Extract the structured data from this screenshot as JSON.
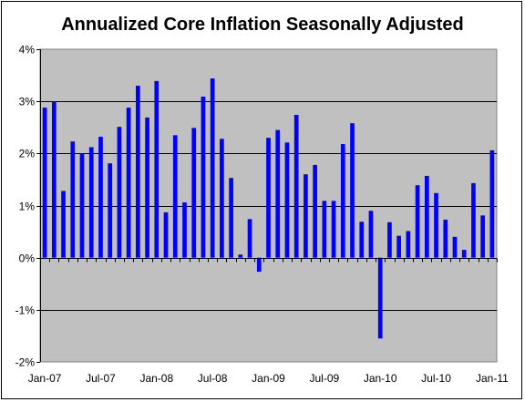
{
  "chart_data": {
    "type": "bar",
    "title": "Annualized Core Inflation Seasonally Adjusted",
    "xlabel": "",
    "ylabel": "",
    "ylim": [
      -2,
      4
    ],
    "y_tick_values": [
      -2,
      -1,
      0,
      1,
      2,
      3,
      4
    ],
    "y_tick_labels": [
      "-2%",
      "-1%",
      "0%",
      "1%",
      "2%",
      "3%",
      "4%"
    ],
    "x_tick_labels": [
      "Jan-07",
      "Jul-07",
      "Jan-08",
      "Jul-08",
      "Jan-09",
      "Jul-09",
      "Jan-10",
      "Jul-10",
      "Jan-11"
    ],
    "x_tick_positions": [
      0,
      6,
      12,
      18,
      24,
      30,
      36,
      42,
      48
    ],
    "grid": true,
    "legend": "none",
    "plot_background": "#c0c0c0",
    "bar_color": "#0000ff",
    "categories": [
      "Jan-07",
      "Feb-07",
      "Mar-07",
      "Apr-07",
      "May-07",
      "Jun-07",
      "Jul-07",
      "Aug-07",
      "Sep-07",
      "Oct-07",
      "Nov-07",
      "Dec-07",
      "Jan-08",
      "Feb-08",
      "Mar-08",
      "Apr-08",
      "May-08",
      "Jun-08",
      "Jul-08",
      "Aug-08",
      "Sep-08",
      "Oct-08",
      "Nov-08",
      "Dec-08",
      "Jan-09",
      "Feb-09",
      "Mar-09",
      "Apr-09",
      "May-09",
      "Jun-09",
      "Jul-09",
      "Aug-09",
      "Sep-09",
      "Oct-09",
      "Nov-09",
      "Dec-09",
      "Jan-10",
      "Feb-10",
      "Mar-10",
      "Apr-10",
      "May-10",
      "Jun-10",
      "Jul-10",
      "Aug-10",
      "Sep-10",
      "Oct-10",
      "Nov-10",
      "Dec-10",
      "Jan-11"
    ],
    "values": [
      2.88,
      3.0,
      1.28,
      2.23,
      2.0,
      2.12,
      2.32,
      1.81,
      2.51,
      2.88,
      3.3,
      2.69,
      3.39,
      0.87,
      2.35,
      1.06,
      2.49,
      3.09,
      3.44,
      2.28,
      1.53,
      0.06,
      0.74,
      -0.27,
      2.3,
      2.45,
      2.21,
      2.74,
      1.6,
      1.78,
      1.09,
      1.09,
      2.18,
      2.58,
      0.69,
      0.9,
      -1.55,
      0.68,
      0.42,
      0.51,
      1.39,
      1.57,
      1.24,
      0.73,
      0.4,
      0.15,
      1.43,
      0.81,
      2.06
    ]
  }
}
